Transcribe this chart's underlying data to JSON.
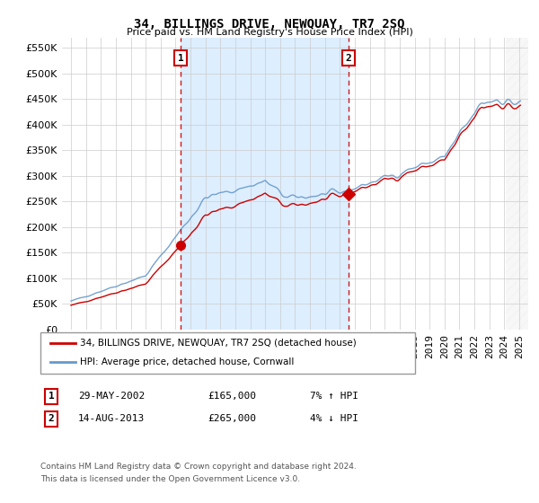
{
  "title": "34, BILLINGS DRIVE, NEWQUAY, TR7 2SQ",
  "subtitle": "Price paid vs. HM Land Registry's House Price Index (HPI)",
  "legend_line1": "34, BILLINGS DRIVE, NEWQUAY, TR7 2SQ (detached house)",
  "legend_line2": "HPI: Average price, detached house, Cornwall",
  "transaction1_date": "29-MAY-2002",
  "transaction1_price": 165000,
  "transaction1_text": "7% ↑ HPI",
  "transaction2_date": "14-AUG-2013",
  "transaction2_price": 265000,
  "transaction2_text": "4% ↓ HPI",
  "footer1": "Contains HM Land Registry data © Crown copyright and database right 2024.",
  "footer2": "This data is licensed under the Open Government Licence v3.0.",
  "hpi_color": "#6699cc",
  "price_color": "#cc0000",
  "vline_color": "#cc0000",
  "shade_color": "#ddeeff",
  "ylim": [
    0,
    570000
  ],
  "yticks": [
    0,
    50000,
    100000,
    150000,
    200000,
    250000,
    300000,
    350000,
    400000,
    450000,
    500000,
    550000
  ],
  "background_color": "#ffffff",
  "grid_color": "#cccccc"
}
